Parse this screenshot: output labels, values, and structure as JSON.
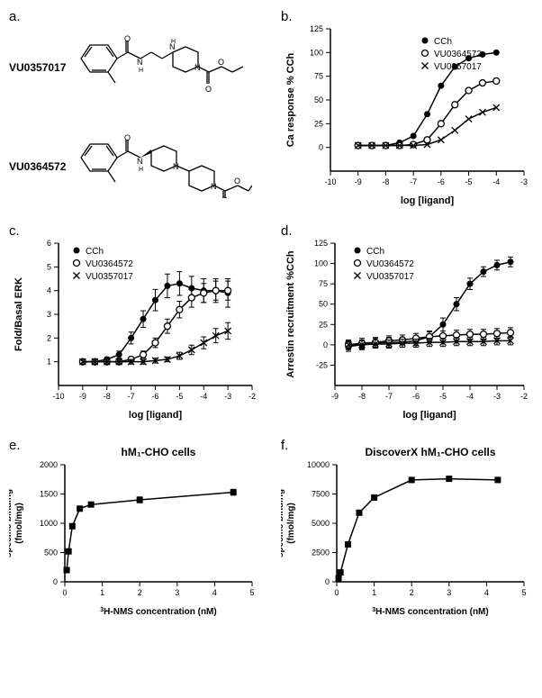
{
  "panel_a": {
    "label": "a.",
    "compounds": [
      {
        "name": "VU0357017"
      },
      {
        "name": "VU0364572"
      }
    ],
    "line_color": "#000000",
    "label_fontsize": 12,
    "label_fontweight": "bold"
  },
  "panel_b": {
    "label": "b.",
    "type": "scatter-line",
    "xlabel": "log [ligand]",
    "ylabel": "Ca response % CCh",
    "xlim": [
      -10,
      -3
    ],
    "ylim": [
      -25,
      125
    ],
    "xticks": [
      -10,
      -9,
      -8,
      -7,
      -6,
      -5,
      -4,
      -3
    ],
    "yticks": [
      0,
      25,
      50,
      75,
      100,
      125
    ],
    "label_fontsize": 11,
    "tick_fontsize": 9,
    "grid": false,
    "background_color": "#ffffff",
    "legend_pos": "top-right-inset",
    "series": [
      {
        "name": "CCh",
        "marker": "filled-circle",
        "color": "#000000",
        "line_color": "#000000",
        "line_width": 1.5,
        "x": [
          -9,
          -8.5,
          -8,
          -7.5,
          -7,
          -6.5,
          -6,
          -5.5,
          -5,
          -4.5,
          -4
        ],
        "y": [
          2,
          2,
          2,
          5,
          12,
          35,
          65,
          85,
          94,
          98,
          100
        ]
      },
      {
        "name": "VU0364572",
        "marker": "open-circle",
        "color": "#000000",
        "line_color": "#000000",
        "line_width": 1.5,
        "x": [
          -9,
          -8.5,
          -8,
          -7.5,
          -7,
          -6.5,
          -6,
          -5.5,
          -5,
          -4.5,
          -4
        ],
        "y": [
          2,
          2,
          2,
          2,
          3,
          8,
          25,
          45,
          60,
          68,
          70
        ]
      },
      {
        "name": "VU0357017",
        "marker": "x",
        "color": "#000000",
        "line_color": "#000000",
        "line_width": 1.5,
        "x": [
          -9,
          -8.5,
          -8,
          -7.5,
          -7,
          -6.5,
          -6,
          -5.5,
          -5,
          -4.5,
          -4
        ],
        "y": [
          2,
          2,
          2,
          2,
          2,
          3,
          8,
          18,
          30,
          37,
          42
        ]
      }
    ]
  },
  "panel_c": {
    "label": "c.",
    "type": "scatter-line",
    "xlabel": "log [ligand]",
    "ylabel": "Fold/Basal ERK",
    "xlim": [
      -10,
      -2
    ],
    "ylim": [
      0,
      6
    ],
    "xticks": [
      -10,
      -9,
      -8,
      -7,
      -6,
      -5,
      -4,
      -3,
      -2
    ],
    "yticks": [
      1,
      2,
      3,
      4,
      5,
      6
    ],
    "label_fontsize": 11,
    "tick_fontsize": 9,
    "grid": false,
    "background_color": "#ffffff",
    "legend_pos": "top-left-inset",
    "error_bars": true,
    "series": [
      {
        "name": "CCh",
        "marker": "filled-circle",
        "color": "#000000",
        "x": [
          -9,
          -8.5,
          -8,
          -7.5,
          -7,
          -6.5,
          -6,
          -5.5,
          -5,
          -4.5,
          -4,
          -3.5,
          -3
        ],
        "y": [
          1,
          1,
          1.1,
          1.3,
          2.0,
          2.8,
          3.6,
          4.2,
          4.3,
          4.1,
          4.0,
          4.0,
          3.9
        ],
        "err": [
          0.1,
          0.1,
          0.1,
          0.15,
          0.25,
          0.35,
          0.45,
          0.5,
          0.5,
          0.5,
          0.5,
          0.5,
          0.6
        ]
      },
      {
        "name": "VU0364572",
        "marker": "open-circle",
        "color": "#000000",
        "x": [
          -9,
          -8.5,
          -8,
          -7.5,
          -7,
          -6.5,
          -6,
          -5.5,
          -5,
          -4.5,
          -4,
          -3.5,
          -3
        ],
        "y": [
          1,
          1,
          1,
          1,
          1.1,
          1.3,
          1.8,
          2.5,
          3.2,
          3.7,
          3.9,
          4.0,
          4.0
        ],
        "err": [
          0.1,
          0.1,
          0.1,
          0.1,
          0.1,
          0.15,
          0.2,
          0.3,
          0.35,
          0.4,
          0.4,
          0.4,
          0.4
        ]
      },
      {
        "name": "VU0357017",
        "marker": "x",
        "color": "#000000",
        "x": [
          -9,
          -8.5,
          -8,
          -7.5,
          -7,
          -6.5,
          -6,
          -5.5,
          -5,
          -4.5,
          -4,
          -3.5,
          -3
        ],
        "y": [
          1,
          1,
          1,
          1,
          1,
          1,
          1.05,
          1.1,
          1.25,
          1.5,
          1.8,
          2.1,
          2.3
        ],
        "err": [
          0.1,
          0.1,
          0.1,
          0.1,
          0.1,
          0.1,
          0.1,
          0.1,
          0.15,
          0.2,
          0.25,
          0.3,
          0.35
        ]
      }
    ]
  },
  "panel_d": {
    "label": "d.",
    "type": "scatter-line",
    "xlabel": "log [ligand]",
    "ylabel": "Arrestin recruitment %CCh",
    "xlim": [
      -9,
      -2
    ],
    "ylim": [
      -50,
      125
    ],
    "xticks": [
      -9,
      -8,
      -7,
      -6,
      -5,
      -4,
      -3,
      -2
    ],
    "yticks": [
      -25,
      0,
      25,
      50,
      75,
      100,
      125
    ],
    "label_fontsize": 11,
    "tick_fontsize": 9,
    "grid": false,
    "background_color": "#ffffff",
    "legend_pos": "top-left-inset",
    "error_bars": true,
    "series": [
      {
        "name": "CCh",
        "marker": "filled-circle",
        "color": "#000000",
        "x": [
          -8.5,
          -8,
          -7.5,
          -7,
          -6.5,
          -6,
          -5.5,
          -5,
          -4.5,
          -4,
          -3.5,
          -3,
          -2.5
        ],
        "y": [
          -2,
          0,
          2,
          3,
          3,
          5,
          10,
          25,
          50,
          75,
          90,
          98,
          102
        ],
        "err": [
          6,
          6,
          6,
          6,
          6,
          6,
          7,
          8,
          8,
          7,
          6,
          6,
          6
        ]
      },
      {
        "name": "VU0364572",
        "marker": "open-circle",
        "color": "#000000",
        "x": [
          -8.5,
          -8,
          -7.5,
          -7,
          -6.5,
          -6,
          -5.5,
          -5,
          -4.5,
          -4,
          -3.5,
          -3,
          -2.5
        ],
        "y": [
          0,
          2,
          3,
          5,
          6,
          8,
          10,
          11,
          12,
          13,
          13,
          14,
          15
        ],
        "err": [
          6,
          6,
          6,
          6,
          6,
          6,
          6,
          6,
          6,
          6,
          6,
          6,
          6
        ]
      },
      {
        "name": "VU0357017",
        "marker": "x",
        "color": "#000000",
        "x": [
          -8.5,
          -8,
          -7.5,
          -7,
          -6.5,
          -6,
          -5.5,
          -5,
          -4.5,
          -4,
          -3.5,
          -3,
          -2.5
        ],
        "y": [
          0,
          0,
          1,
          1,
          2,
          2,
          3,
          3,
          4,
          4,
          4,
          5,
          5
        ],
        "err": [
          5,
          5,
          5,
          5,
          5,
          5,
          5,
          5,
          5,
          5,
          5,
          5,
          5
        ]
      }
    ]
  },
  "panel_e": {
    "label": "e.",
    "type": "scatter-line",
    "title": "hM₁-CHO cells",
    "xlabel": "³H-NMS concentration (nM)",
    "ylabel": "specific binding\n(fmol/mg)",
    "xlim": [
      0,
      5
    ],
    "ylim": [
      0,
      2000
    ],
    "xticks": [
      0,
      1,
      2,
      3,
      4,
      5
    ],
    "yticks": [
      0,
      500,
      1000,
      1500,
      2000
    ],
    "label_fontsize": 10,
    "tick_fontsize": 9,
    "title_fontsize": 12,
    "title_fontweight": "bold",
    "grid": false,
    "background_color": "#ffffff",
    "error_bars": true,
    "series": [
      {
        "name": "binding",
        "marker": "filled-square",
        "color": "#000000",
        "x": [
          0.05,
          0.1,
          0.2,
          0.4,
          0.7,
          2.0,
          4.5
        ],
        "y": [
          200,
          520,
          950,
          1250,
          1320,
          1400,
          1530
        ],
        "err": [
          40,
          40,
          40,
          40,
          40,
          50,
          50
        ]
      }
    ]
  },
  "panel_f": {
    "label": "f.",
    "type": "scatter-line",
    "title": "DiscoverX hM₁-CHO cells",
    "xlabel": "³H-NMS concentration (nM)",
    "ylabel": "specific binding\n(fmol/mg)",
    "xlim": [
      0,
      5
    ],
    "ylim": [
      0,
      10000
    ],
    "xticks": [
      0,
      1,
      2,
      3,
      4,
      5
    ],
    "yticks": [
      0,
      2500,
      5000,
      7500,
      10000
    ],
    "label_fontsize": 10,
    "tick_fontsize": 9,
    "title_fontsize": 12,
    "title_fontweight": "bold",
    "grid": false,
    "background_color": "#ffffff",
    "error_bars": false,
    "series": [
      {
        "name": "binding",
        "marker": "filled-square",
        "color": "#000000",
        "x": [
          0.05,
          0.1,
          0.3,
          0.6,
          1.0,
          2.0,
          3.0,
          4.3
        ],
        "y": [
          300,
          800,
          3200,
          5900,
          7200,
          8700,
          8800,
          8700
        ],
        "err": [
          0,
          0,
          0,
          0,
          0,
          0,
          0,
          0
        ]
      }
    ]
  }
}
